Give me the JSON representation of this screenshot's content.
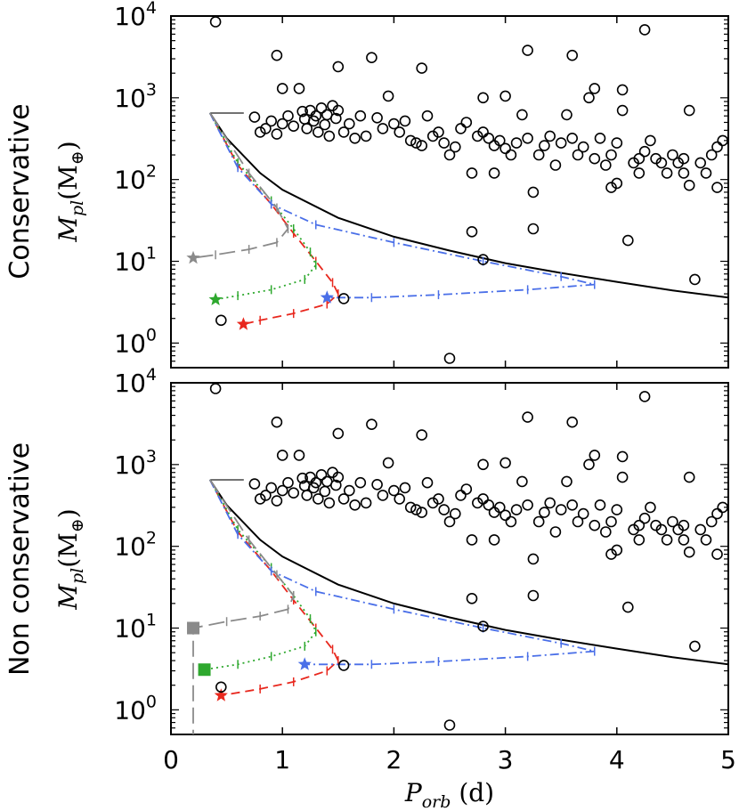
{
  "chart_data": [
    {
      "type": "scatter",
      "row_label": "Conservative",
      "ylabel_main": "M",
      "ylabel_sub": "pl",
      "ylabel_unit": "(M",
      "ylabel_unit_sym": "⊕",
      "ylabel_close": ")",
      "xlim": [
        0,
        5
      ],
      "ylim": [
        0.5,
        10000
      ],
      "yscale": "log",
      "x_ticks": [
        "0",
        "1",
        "2",
        "3",
        "4",
        "5"
      ],
      "y_ticks": [
        {
          "base": "10",
          "exp": "0"
        },
        {
          "base": "10",
          "exp": "1"
        },
        {
          "base": "10",
          "exp": "2"
        },
        {
          "base": "10",
          "exp": "3"
        },
        {
          "base": "10",
          "exp": "4"
        }
      ],
      "threshold_curve": {
        "x": [
          0.35,
          0.5,
          0.8,
          1.0,
          1.5,
          2.0,
          2.5,
          3.0,
          3.5,
          4.0,
          4.5,
          5.0
        ],
        "y": [
          650,
          320,
          120,
          75,
          34,
          20,
          13.5,
          9.5,
          7.2,
          5.6,
          4.4,
          3.6
        ]
      },
      "series": [
        {
          "color": "#e8281e",
          "style": "dash",
          "x": [
            0.35,
            0.6,
            0.9,
            1.1,
            1.3,
            1.45,
            1.5,
            1.4,
            1.1,
            0.8,
            0.65
          ],
          "y": [
            650,
            150,
            50,
            22,
            10,
            5.5,
            4,
            3,
            2.3,
            1.9,
            1.7
          ],
          "end": {
            "x": 0.65,
            "y": 1.7,
            "marker": "star"
          }
        },
        {
          "color": "#2ea82e",
          "style": "dot",
          "x": [
            0.35,
            0.6,
            0.9,
            1.1,
            1.25,
            1.3,
            1.2,
            0.9,
            0.6,
            0.4
          ],
          "y": [
            650,
            160,
            55,
            25,
            13,
            9,
            6,
            4.5,
            3.8,
            3.4
          ],
          "end": {
            "x": 0.4,
            "y": 3.4,
            "marker": "star"
          }
        },
        {
          "color": "#4a6fe8",
          "style": "dashdot",
          "x": [
            0.35,
            0.6,
            0.9,
            1.3,
            2.0,
            2.8,
            3.5,
            3.8,
            3.2,
            2.4,
            1.8,
            1.4
          ],
          "y": [
            650,
            140,
            50,
            28,
            17,
            10,
            6.5,
            5.2,
            4.5,
            3.9,
            3.6,
            3.6
          ],
          "end": {
            "x": 1.4,
            "y": 3.6,
            "marker": "star"
          }
        },
        {
          "color": "#8a8a8a",
          "style": "longdash",
          "x": [
            0.35,
            0.7,
            0.95,
            1.05,
            0.95,
            0.7,
            0.4,
            0.2
          ],
          "y": [
            650,
            120,
            45,
            25,
            17,
            14,
            12,
            11
          ],
          "end": {
            "x": 0.2,
            "y": 11,
            "marker": "star"
          }
        }
      ],
      "observed": [
        [
          0.45,
          1.9
        ],
        [
          0.75,
          580
        ],
        [
          0.8,
          380
        ],
        [
          0.85,
          420
        ],
        [
          0.9,
          520
        ],
        [
          0.95,
          360
        ],
        [
          1.0,
          480
        ],
        [
          1.05,
          600
        ],
        [
          1.1,
          450
        ],
        [
          1.15,
          1300
        ],
        [
          1.18,
          680
        ],
        [
          1.2,
          550
        ],
        [
          1.22,
          420
        ],
        [
          1.25,
          700
        ],
        [
          1.28,
          520
        ],
        [
          1.3,
          600
        ],
        [
          1.32,
          380
        ],
        [
          1.35,
          750
        ],
        [
          1.38,
          470
        ],
        [
          1.4,
          620
        ],
        [
          1.42,
          340
        ],
        [
          1.45,
          800
        ],
        [
          1.48,
          560
        ],
        [
          1.5,
          700
        ],
        [
          1.55,
          380
        ],
        [
          1.6,
          480
        ],
        [
          1.65,
          320
        ],
        [
          1.7,
          600
        ],
        [
          1.75,
          340
        ],
        [
          1.8,
          3100
        ],
        [
          1.85,
          570
        ],
        [
          1.9,
          420
        ],
        [
          1.95,
          1050
        ],
        [
          2.0,
          480
        ],
        [
          2.05,
          380
        ],
        [
          2.1,
          520
        ],
        [
          2.15,
          300
        ],
        [
          2.2,
          280
        ],
        [
          2.25,
          260
        ],
        [
          2.3,
          600
        ],
        [
          2.35,
          340
        ],
        [
          2.4,
          380
        ],
        [
          2.45,
          280
        ],
        [
          2.5,
          200
        ],
        [
          2.55,
          250
        ],
        [
          2.6,
          420
        ],
        [
          2.65,
          500
        ],
        [
          2.7,
          23
        ],
        [
          2.75,
          340
        ],
        [
          2.8,
          380
        ],
        [
          2.85,
          320
        ],
        [
          2.9,
          260
        ],
        [
          2.95,
          300
        ],
        [
          3.0,
          240
        ],
        [
          3.05,
          200
        ],
        [
          3.1,
          280
        ],
        [
          3.15,
          620
        ],
        [
          3.2,
          320
        ],
        [
          3.25,
          25
        ],
        [
          3.3,
          200
        ],
        [
          3.35,
          260
        ],
        [
          3.4,
          340
        ],
        [
          3.45,
          150
        ],
        [
          3.5,
          280
        ],
        [
          3.55,
          620
        ],
        [
          3.6,
          320
        ],
        [
          3.65,
          200
        ],
        [
          3.7,
          250
        ],
        [
          3.75,
          1000
        ],
        [
          3.8,
          180
        ],
        [
          3.85,
          320
        ],
        [
          3.9,
          150
        ],
        [
          3.95,
          200
        ],
        [
          4.0,
          280
        ],
        [
          4.05,
          700
        ],
        [
          4.1,
          18
        ],
        [
          4.15,
          160
        ],
        [
          4.2,
          120
        ],
        [
          4.25,
          220
        ],
        [
          4.3,
          300
        ],
        [
          4.35,
          180
        ],
        [
          4.4,
          160
        ],
        [
          4.45,
          120
        ],
        [
          4.5,
          200
        ],
        [
          4.55,
          160
        ],
        [
          4.6,
          180
        ],
        [
          4.65,
          700
        ],
        [
          4.7,
          6
        ],
        [
          4.75,
          160
        ],
        [
          4.8,
          120
        ],
        [
          4.85,
          200
        ],
        [
          4.9,
          250
        ],
        [
          4.95,
          300
        ],
        [
          1.55,
          3.5
        ],
        [
          0.4,
          8500
        ],
        [
          4.25,
          6800
        ],
        [
          0.95,
          3300
        ],
        [
          1.5,
          2400
        ],
        [
          3.2,
          3800
        ],
        [
          2.25,
          2300
        ],
        [
          3.6,
          3300
        ],
        [
          2.8,
          10.5
        ],
        [
          2.5,
          0.65
        ],
        [
          1.0,
          1300
        ],
        [
          2.8,
          1000
        ],
        [
          3.0,
          1050
        ],
        [
          3.8,
          1300
        ],
        [
          4.05,
          1250
        ],
        [
          4.6,
          120
        ],
        [
          4.9,
          80
        ],
        [
          4.0,
          90
        ],
        [
          3.95,
          80
        ],
        [
          4.65,
          85
        ],
        [
          2.7,
          120
        ],
        [
          2.9,
          120
        ],
        [
          3.25,
          70
        ],
        [
          4.2,
          180
        ]
      ]
    },
    {
      "type": "scatter",
      "row_label": "Non conservative",
      "ylabel_main": "M",
      "ylabel_sub": "pl",
      "ylabel_unit": "(M",
      "ylabel_unit_sym": "⊕",
      "ylabel_close": ")",
      "xlabel_main": "P",
      "xlabel_sub": "orb",
      "xlabel_unit": " (d)",
      "xlim": [
        0,
        5
      ],
      "ylim": [
        0.5,
        10000
      ],
      "yscale": "log",
      "x_ticks": [
        "0",
        "1",
        "2",
        "3",
        "4",
        "5"
      ],
      "y_ticks": [
        {
          "base": "10",
          "exp": "0"
        },
        {
          "base": "10",
          "exp": "1"
        },
        {
          "base": "10",
          "exp": "2"
        },
        {
          "base": "10",
          "exp": "3"
        },
        {
          "base": "10",
          "exp": "4"
        }
      ],
      "threshold_curve": {
        "x": [
          0.35,
          0.5,
          0.8,
          1.0,
          1.5,
          2.0,
          2.5,
          3.0,
          3.5,
          4.0,
          4.5,
          5.0
        ],
        "y": [
          650,
          320,
          120,
          75,
          34,
          20,
          13.5,
          9.5,
          7.2,
          5.6,
          4.4,
          3.6
        ]
      },
      "series": [
        {
          "color": "#e8281e",
          "style": "dash",
          "x": [
            0.35,
            0.6,
            0.9,
            1.1,
            1.3,
            1.45,
            1.5,
            1.4,
            1.1,
            0.8,
            0.45
          ],
          "y": [
            650,
            150,
            50,
            22,
            10,
            5.5,
            4,
            3,
            2.2,
            1.8,
            1.5
          ],
          "end": {
            "x": 0.45,
            "y": 1.5,
            "marker": "star"
          }
        },
        {
          "color": "#2ea82e",
          "style": "dot",
          "x": [
            0.35,
            0.6,
            0.9,
            1.1,
            1.25,
            1.3,
            1.2,
            0.9,
            0.6,
            0.3
          ],
          "y": [
            650,
            160,
            55,
            25,
            13,
            9,
            6,
            4.5,
            3.6,
            3.1
          ],
          "end": {
            "x": 0.3,
            "y": 3.1,
            "marker": "square"
          }
        },
        {
          "color": "#4a6fe8",
          "style": "dashdot",
          "x": [
            0.35,
            0.6,
            0.9,
            1.3,
            2.0,
            2.8,
            3.5,
            3.8,
            3.2,
            2.4,
            1.8,
            1.2
          ],
          "y": [
            650,
            140,
            50,
            28,
            17,
            10,
            6.5,
            5.2,
            4.5,
            3.9,
            3.6,
            3.6
          ],
          "end": {
            "x": 1.2,
            "y": 3.6,
            "marker": "star"
          }
        },
        {
          "color": "#8a8a8a",
          "style": "longdash",
          "x": [
            0.35,
            0.7,
            0.95,
            1.1,
            1.05,
            0.8,
            0.5,
            0.2,
            0.2
          ],
          "y": [
            650,
            120,
            45,
            25,
            17,
            14,
            12,
            10,
            0.5
          ],
          "end": {
            "x": 0.2,
            "y": 10,
            "marker": "square"
          }
        }
      ],
      "observed": [
        [
          0.45,
          1.9
        ],
        [
          0.75,
          580
        ],
        [
          0.8,
          380
        ],
        [
          0.85,
          420
        ],
        [
          0.9,
          520
        ],
        [
          0.95,
          360
        ],
        [
          1.0,
          480
        ],
        [
          1.05,
          600
        ],
        [
          1.1,
          450
        ],
        [
          1.15,
          1300
        ],
        [
          1.18,
          680
        ],
        [
          1.2,
          550
        ],
        [
          1.22,
          420
        ],
        [
          1.25,
          700
        ],
        [
          1.28,
          520
        ],
        [
          1.3,
          600
        ],
        [
          1.32,
          380
        ],
        [
          1.35,
          750
        ],
        [
          1.38,
          470
        ],
        [
          1.4,
          620
        ],
        [
          1.42,
          340
        ],
        [
          1.45,
          800
        ],
        [
          1.48,
          560
        ],
        [
          1.5,
          700
        ],
        [
          1.55,
          380
        ],
        [
          1.6,
          480
        ],
        [
          1.65,
          320
        ],
        [
          1.7,
          600
        ],
        [
          1.75,
          340
        ],
        [
          1.8,
          3100
        ],
        [
          1.85,
          570
        ],
        [
          1.9,
          420
        ],
        [
          1.95,
          1050
        ],
        [
          2.0,
          480
        ],
        [
          2.05,
          380
        ],
        [
          2.1,
          520
        ],
        [
          2.15,
          300
        ],
        [
          2.2,
          280
        ],
        [
          2.25,
          260
        ],
        [
          2.3,
          600
        ],
        [
          2.35,
          340
        ],
        [
          2.4,
          380
        ],
        [
          2.45,
          280
        ],
        [
          2.5,
          200
        ],
        [
          2.55,
          250
        ],
        [
          2.6,
          420
        ],
        [
          2.65,
          500
        ],
        [
          2.7,
          23
        ],
        [
          2.75,
          340
        ],
        [
          2.8,
          380
        ],
        [
          2.85,
          320
        ],
        [
          2.9,
          260
        ],
        [
          2.95,
          300
        ],
        [
          3.0,
          240
        ],
        [
          3.05,
          200
        ],
        [
          3.1,
          280
        ],
        [
          3.15,
          620
        ],
        [
          3.2,
          320
        ],
        [
          3.25,
          25
        ],
        [
          3.3,
          200
        ],
        [
          3.35,
          260
        ],
        [
          3.4,
          340
        ],
        [
          3.45,
          150
        ],
        [
          3.5,
          280
        ],
        [
          3.55,
          620
        ],
        [
          3.6,
          320
        ],
        [
          3.65,
          200
        ],
        [
          3.7,
          250
        ],
        [
          3.75,
          1000
        ],
        [
          3.8,
          180
        ],
        [
          3.85,
          320
        ],
        [
          3.9,
          150
        ],
        [
          3.95,
          200
        ],
        [
          4.0,
          280
        ],
        [
          4.05,
          700
        ],
        [
          4.1,
          18
        ],
        [
          4.15,
          160
        ],
        [
          4.2,
          120
        ],
        [
          4.25,
          220
        ],
        [
          4.3,
          300
        ],
        [
          4.35,
          180
        ],
        [
          4.4,
          160
        ],
        [
          4.45,
          120
        ],
        [
          4.5,
          200
        ],
        [
          4.55,
          160
        ],
        [
          4.6,
          180
        ],
        [
          4.65,
          700
        ],
        [
          4.7,
          6
        ],
        [
          4.75,
          160
        ],
        [
          4.8,
          120
        ],
        [
          4.85,
          200
        ],
        [
          4.9,
          250
        ],
        [
          4.95,
          300
        ],
        [
          1.55,
          3.5
        ],
        [
          0.4,
          8500
        ],
        [
          4.25,
          6800
        ],
        [
          0.95,
          3300
        ],
        [
          1.5,
          2400
        ],
        [
          3.2,
          3800
        ],
        [
          2.25,
          2300
        ],
        [
          3.6,
          3300
        ],
        [
          2.8,
          10.5
        ],
        [
          2.5,
          0.65
        ],
        [
          1.0,
          1300
        ],
        [
          2.8,
          1000
        ],
        [
          3.0,
          1050
        ],
        [
          3.8,
          1300
        ],
        [
          4.05,
          1250
        ],
        [
          4.6,
          120
        ],
        [
          4.9,
          80
        ],
        [
          4.0,
          90
        ],
        [
          3.95,
          80
        ],
        [
          4.65,
          85
        ],
        [
          2.7,
          120
        ],
        [
          2.9,
          120
        ],
        [
          3.25,
          70
        ],
        [
          4.2,
          180
        ]
      ]
    }
  ]
}
